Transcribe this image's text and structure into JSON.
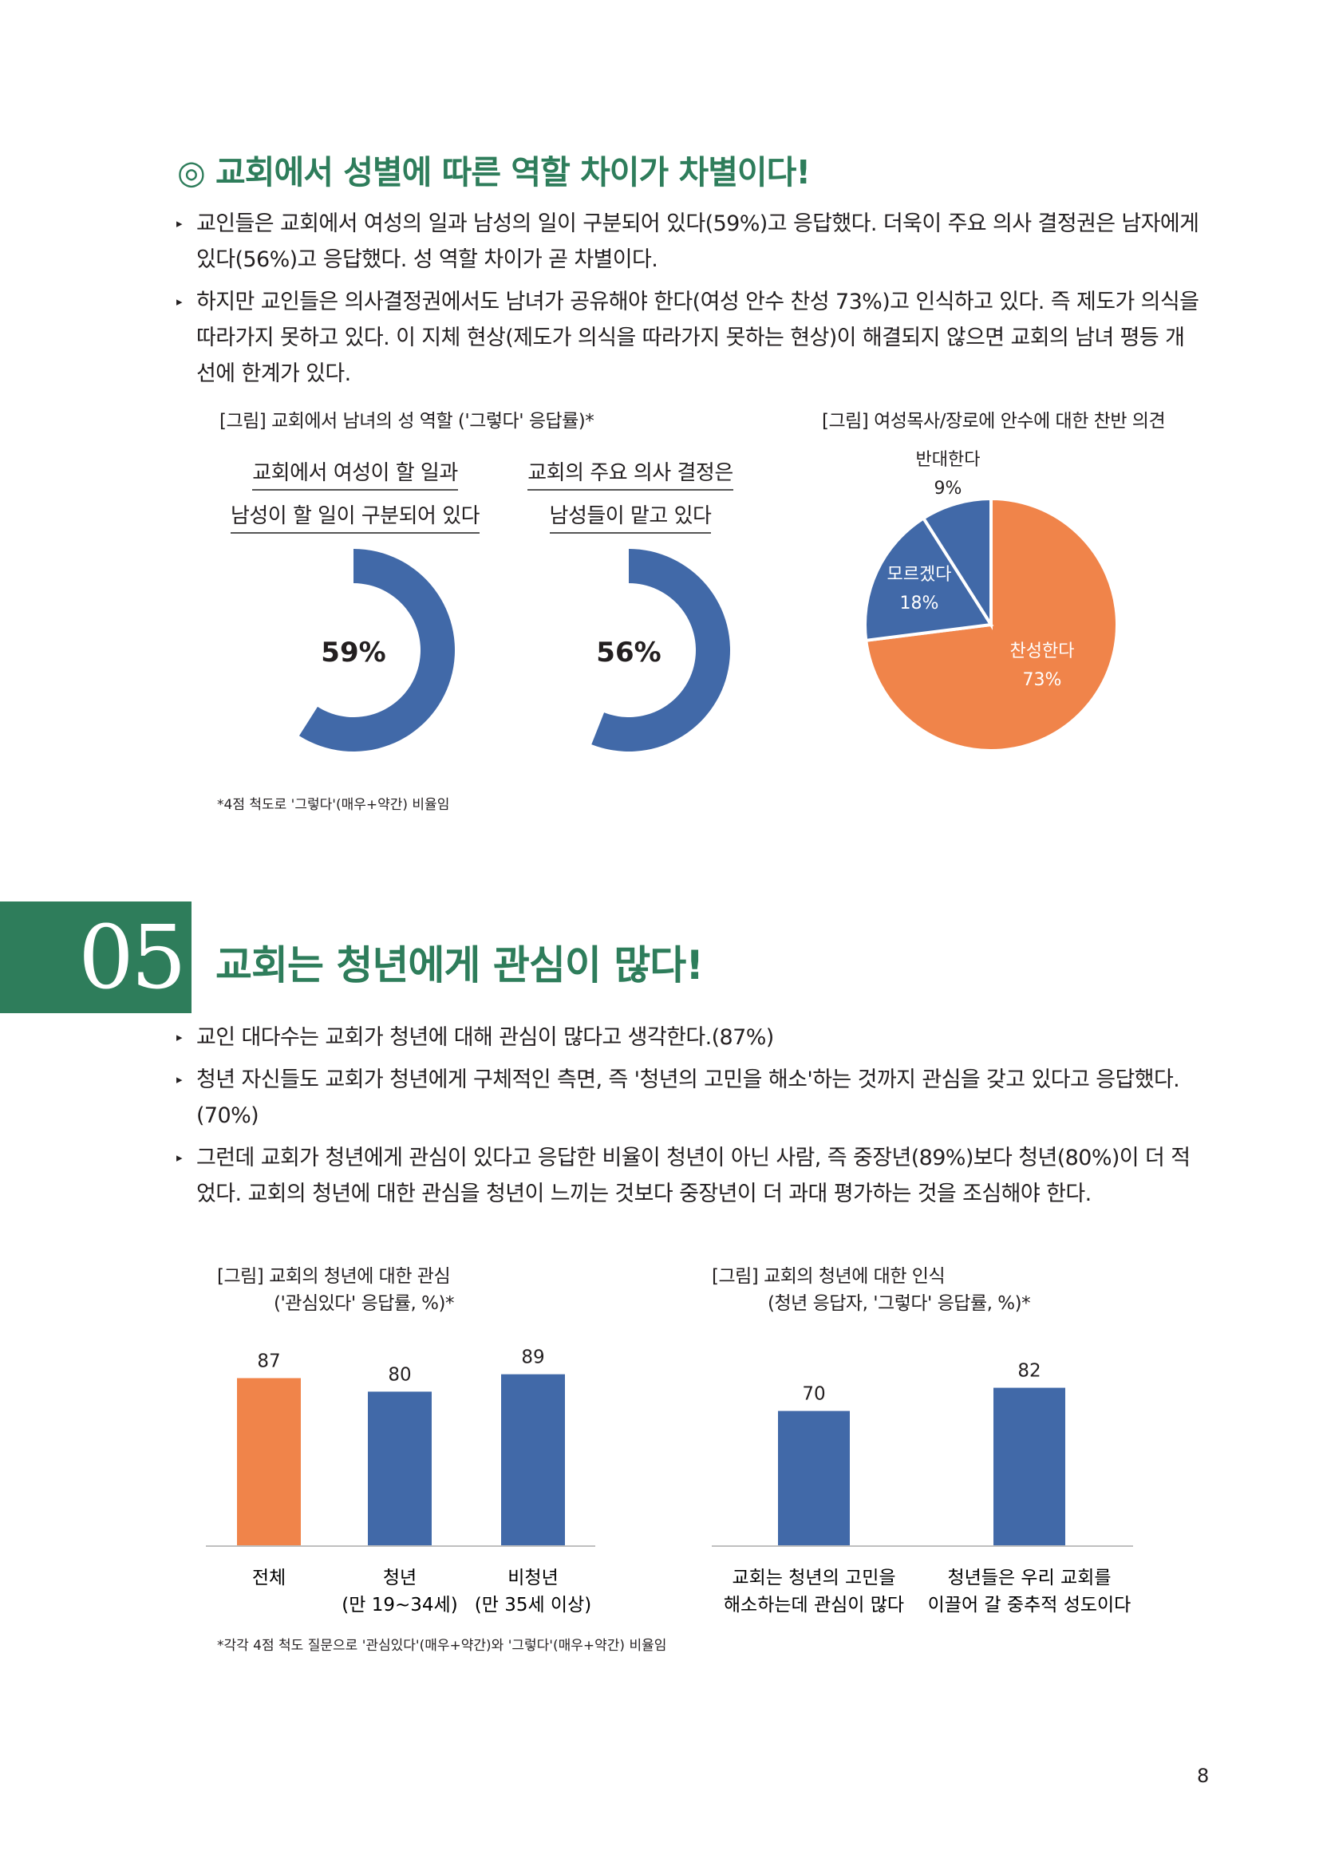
{
  "section1": {
    "title": "◎ 교회에서 성별에 따른 역할 차이가 차별이다!",
    "bullets": [
      "교인들은 교회에서 여성의 일과 남성의 일이 구분되어 있다(59%)고 응답했다. 더욱이 주요 의사 결정권은 남자에게 있다(56%)고 응답했다. 성 역할 차이가 곧 차별이다.",
      "하지만 교인들은 의사결정권에서도 남녀가 공유해야 한다(여성 안수 찬성 73%)고 인식하고 있다. 즉 제도가 의식을 따라가지 못하고 있다. 이 지체 현상(제도가 의식을 따라가지 못하는 현상)이 해결되지 않으면 교회의 남녀 평등 개선에 한계가 있다."
    ],
    "fig1_label": "[그림] 교회에서 남녀의 성 역할 ('그렇다' 응답률)*",
    "fig2_label": "[그림] 여성목사/장로에 안수에 대한 찬반 의견",
    "donut1": {
      "line1": "교회에서 여성이 할 일과",
      "line2": "남성이 할 일이 구분되어 있다",
      "label": "59%"
    },
    "donut2": {
      "line1": "교회의 주요 의사 결정은",
      "line2": "남성들이 맡고 있다",
      "label": "56%"
    },
    "pie_labels": {
      "oppose": "반대한다",
      "oppose_pct": "9%",
      "unknown": "모르겠다",
      "unknown_pct": "18%",
      "agree": "찬성한다",
      "agree_pct": "73%"
    },
    "note": "*4점 척도로 '그렇다'(매우+약간) 비율임"
  },
  "section2": {
    "number": "05",
    "title": "교회는 청년에게 관심이 많다!",
    "bullets": [
      "교인 대다수는 교회가 청년에 대해 관심이 많다고 생각한다.(87%)",
      "청년 자신들도 교회가 청년에게 구체적인 측면, 즉 '청년의 고민을 해소'하는 것까지 관심을 갖고 있다고 응답했다.(70%)",
      "그런데 교회가 청년에게 관심이 있다고 응답한 비율이 청년이 아닌 사람, 즉 중장년(89%)보다 청년(80%)이 더 적었다. 교회의 청년에 대한 관심을 청년이 느끼는 것보다 중장년이 더 과대 평가하는 것을 조심해야 한다."
    ],
    "fig3_label_1": "[그림] 교회의 청년에 대한 관심",
    "fig3_label_2": "('관심있다' 응답률, %)*",
    "fig4_label_1": "[그림] 교회의 청년에 대한 인식",
    "fig4_label_2": "(청년 응답자, '그렇다' 응답률, %)*",
    "cat_labels": {
      "total": "전체",
      "youth": "청년",
      "youth_sub": "(만 19~34세)",
      "nonyouth": "비청년",
      "nonyouth_sub": "(만 35세 이상)",
      "q1_l1": "교회는 청년의 고민을",
      "q1_l2": "해소하는데 관심이 많다",
      "q2_l1": "청년들은 우리 교회를",
      "q2_l2": "이끌어 갈 중추적 성도이다"
    },
    "note": "*각각 4점 척도 질문으로 '관심있다'(매우+약간)와 '그렇다'(매우+약간) 비율임"
  },
  "page_number": "8",
  "colors": {
    "green": "#2e7d5b",
    "blue": "#4169a8",
    "orange": "#f0844a"
  },
  "chart_data": [
    {
      "type": "pie",
      "title": "교회에서 여성이 할 일과 남성이 할 일이 구분되어 있다",
      "values": [
        59
      ],
      "labels": [
        "59%"
      ],
      "note": "donut"
    },
    {
      "type": "pie",
      "title": "교회의 주요 의사 결정은 남성들이 맡고 있다",
      "values": [
        56
      ],
      "labels": [
        "56%"
      ],
      "note": "donut"
    },
    {
      "type": "pie",
      "categories": [
        "찬성한다",
        "모르겠다",
        "반대한다"
      ],
      "values": [
        73,
        18,
        9
      ]
    },
    {
      "type": "bar",
      "categories": [
        "전체",
        "청년",
        "비청년"
      ],
      "values": [
        87,
        80,
        89
      ],
      "colors": [
        "#f0844a",
        "#4169a8",
        "#4169a8"
      ]
    },
    {
      "type": "bar",
      "categories": [
        "교회는 청년의 고민을 해소하는데 관심이 많다",
        "청년들은 우리 교회를 이끌어 갈 중추적 성도이다"
      ],
      "values": [
        70,
        82
      ],
      "colors": [
        "#4169a8",
        "#4169a8"
      ]
    }
  ]
}
